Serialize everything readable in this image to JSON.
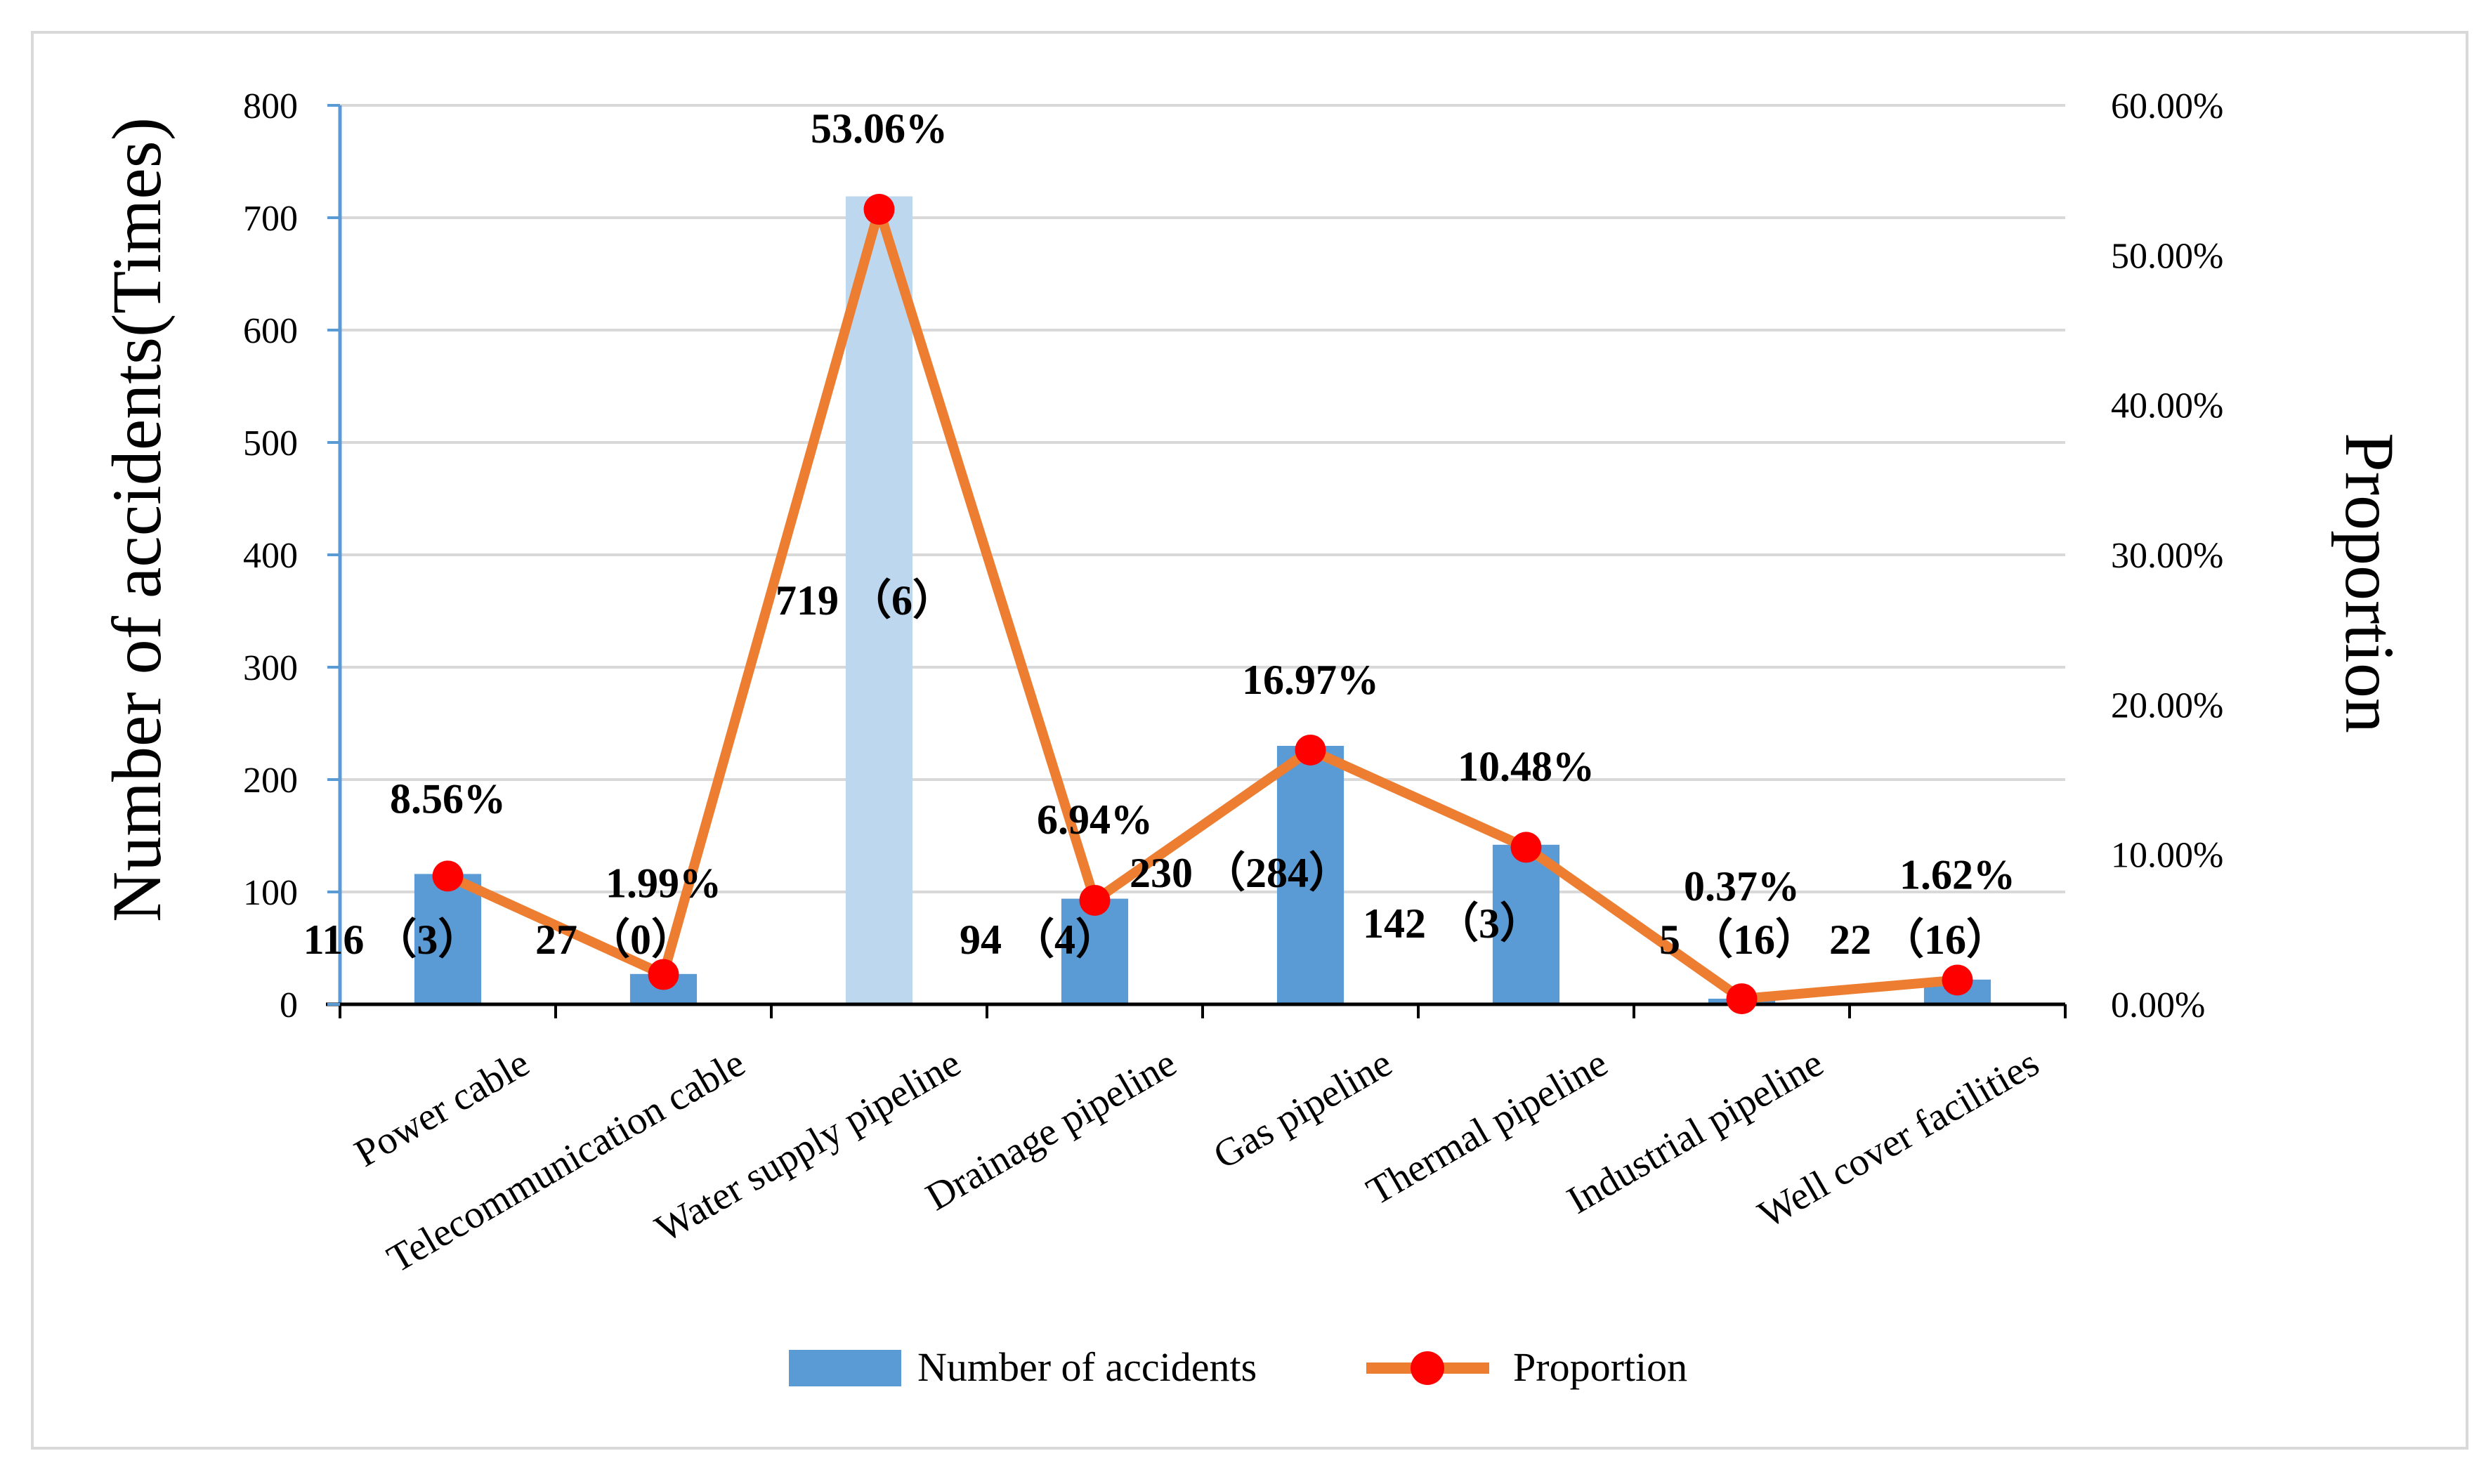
{
  "chart_data": {
    "type": "bar+line",
    "categories": [
      "Power cable",
      "Telecommunication cable",
      "Water supply pipeline",
      "Drainage pipeline",
      "Gas pipeline",
      "Thermal pipeline",
      "Industrial pipeline",
      "Well cover facilities"
    ],
    "series": [
      {
        "name": "Number of accidents",
        "axis": "left",
        "type": "bar",
        "values": [
          116,
          27,
          719,
          94,
          230,
          142,
          5,
          22
        ],
        "labels": [
          "116 （3）",
          "27 （0）",
          "719 （6）",
          "94 （4）",
          "230 （284）",
          "142 （3）",
          "5 （16）",
          "22 （16）"
        ],
        "color": "#5b9bd5",
        "highlight_color": "#bdd7ee",
        "highlight_index": 2
      },
      {
        "name": "Proportion",
        "axis": "right",
        "type": "line",
        "values": [
          8.56,
          1.99,
          53.06,
          6.94,
          16.97,
          10.48,
          0.37,
          1.62
        ],
        "labels": [
          "8.56%",
          "1.99%",
          "53.06%",
          "6.94%",
          "16.97%",
          "10.48%",
          "0.37%",
          "1.62%"
        ],
        "color": "#ed7d31",
        "marker_color": "#ff0000"
      }
    ],
    "y_left": {
      "label": "Number of accidents(Times)",
      "min": 0,
      "max": 800,
      "ticks": [
        "0",
        "100",
        "200",
        "300",
        "400",
        "500",
        "600",
        "700",
        "800"
      ]
    },
    "y_right": {
      "label": "Proportion",
      "min": 0,
      "max": 60,
      "ticks": [
        "0.00%",
        "10.00%",
        "20.00%",
        "30.00%",
        "40.00%",
        "50.00%",
        "60.00%"
      ]
    },
    "grid": true,
    "legend": {
      "position": "bottom",
      "entries": [
        "Number of accidents",
        "Proportion"
      ]
    }
  }
}
